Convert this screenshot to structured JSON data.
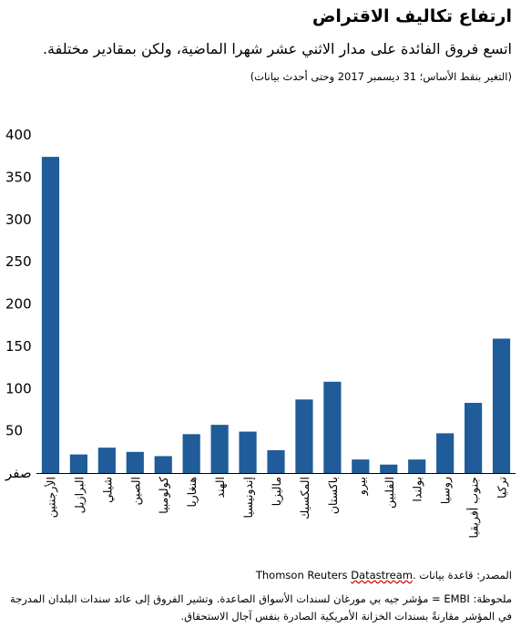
{
  "title": "ارتفاع تكاليف الاقتراض",
  "subtitle": "اتسع فروق الفائدة على مدار الاثني عشر شهرا الماضية، ولكن بمقادير مختلفة.",
  "units_note": "(التغير بنقط الأساس؛ 31 ديسمبر 2017 وحتى أحدث بيانات)",
  "source": {
    "prefix": "المصدر: قاعدة بيانات",
    "name_part1": "Thomson Reuters",
    "name_part2": "Datastream",
    "suffix": "."
  },
  "footnote": "ملحوظة: EMBI = مؤشر جيه بي مورغان لسندات الأسواق الصاعدة. وتشير الفروق إلى عائد سندات البلدان المدرجة في المؤشر مقارنةً بسندات الخزانة الأمريكية الصادرة بنفس آجال الاستحقاق.",
  "colors": {
    "bar": "#1f5c99",
    "axis": "#000000"
  },
  "chart_data": {
    "type": "bar",
    "categories": [
      "الأرجنتين",
      "البرازيل",
      "شيلي",
      "الصين",
      "كولومبيا",
      "هنغاريا",
      "الهند",
      "إندونيسيا",
      "ماليزيا",
      "المكسيك",
      "باكستان",
      "بيرو",
      "الفلبين",
      "بولندا",
      "روسيا",
      "جنوب أفريقيا",
      "تركيا"
    ],
    "values": [
      374,
      22,
      30,
      25,
      20,
      46,
      57,
      49,
      27,
      87,
      108,
      16,
      10,
      16,
      47,
      83,
      159
    ],
    "ylim": [
      0,
      400
    ],
    "yticks": [
      0,
      50,
      100,
      150,
      200,
      250,
      300,
      350,
      400
    ],
    "ytick_labels": [
      "صفر",
      "50",
      "100",
      "150",
      "200",
      "250",
      "300",
      "350",
      "400"
    ],
    "grid": false,
    "legend": "none"
  }
}
